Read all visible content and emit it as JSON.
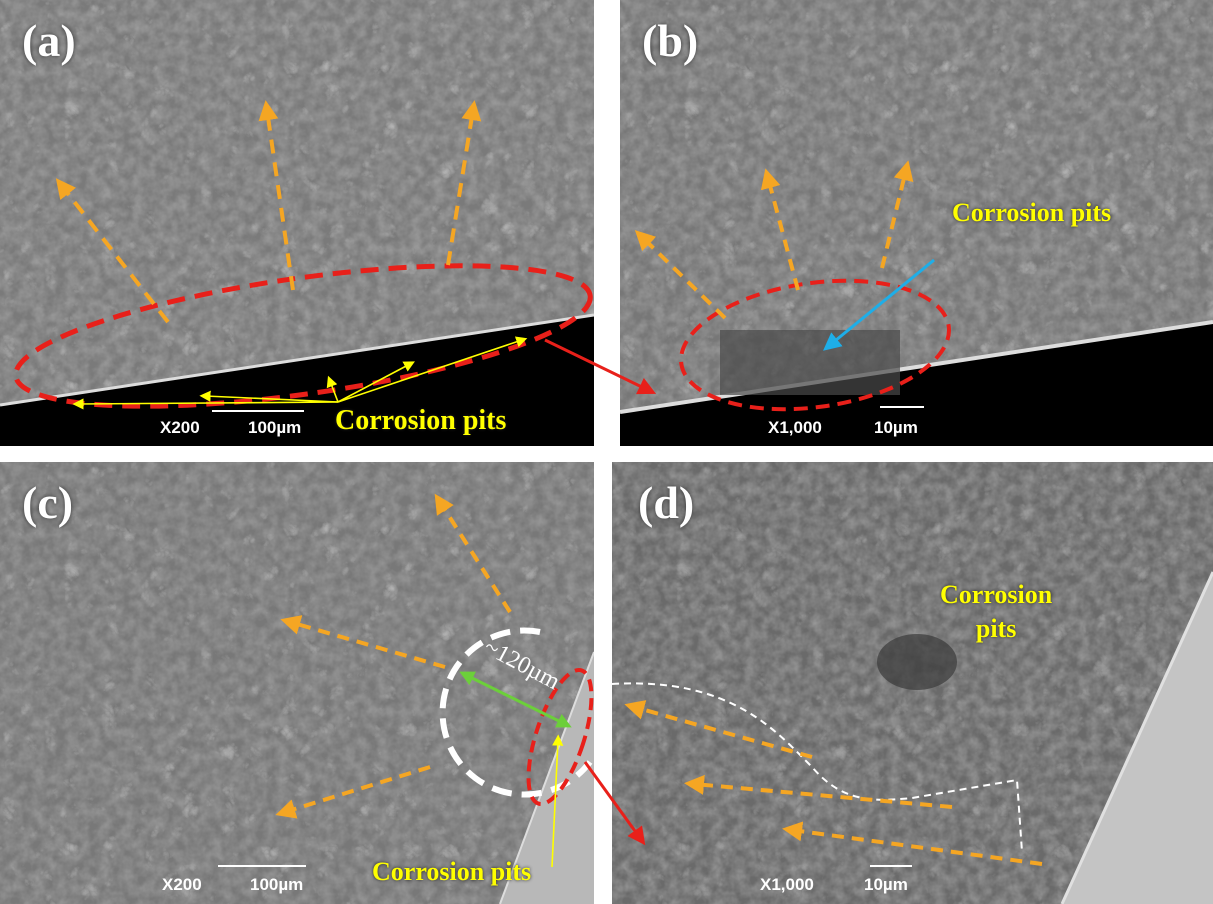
{
  "colors": {
    "fracture_gray": "#7a7a7a",
    "background_black": "#000000",
    "arrow_orange": "#f5a623",
    "boundary_red": "#e8201a",
    "annotation_yellow": "#ffff00",
    "blue_arrow": "#1eaee8",
    "green_arrow": "#6ccf3a",
    "white": "#ffffff"
  },
  "panels": [
    {
      "label": "(a)",
      "magnification": "X200",
      "scale": "100µm",
      "annotation": "Corrosion pits"
    },
    {
      "label": "(b)",
      "magnification": "X1,000",
      "scale": "10µm",
      "annotation": "Corrosion pits"
    },
    {
      "label": "(c)",
      "magnification": "X200",
      "scale": "100µm",
      "annotation": "Corrosion pits",
      "dimension": "~120µm"
    },
    {
      "label": "(d)",
      "magnification": "X1,000",
      "scale": "10µm",
      "annotation": "Corrosion\npits",
      "annotation_line1": "Corrosion",
      "annotation_line2": "pits"
    }
  ]
}
